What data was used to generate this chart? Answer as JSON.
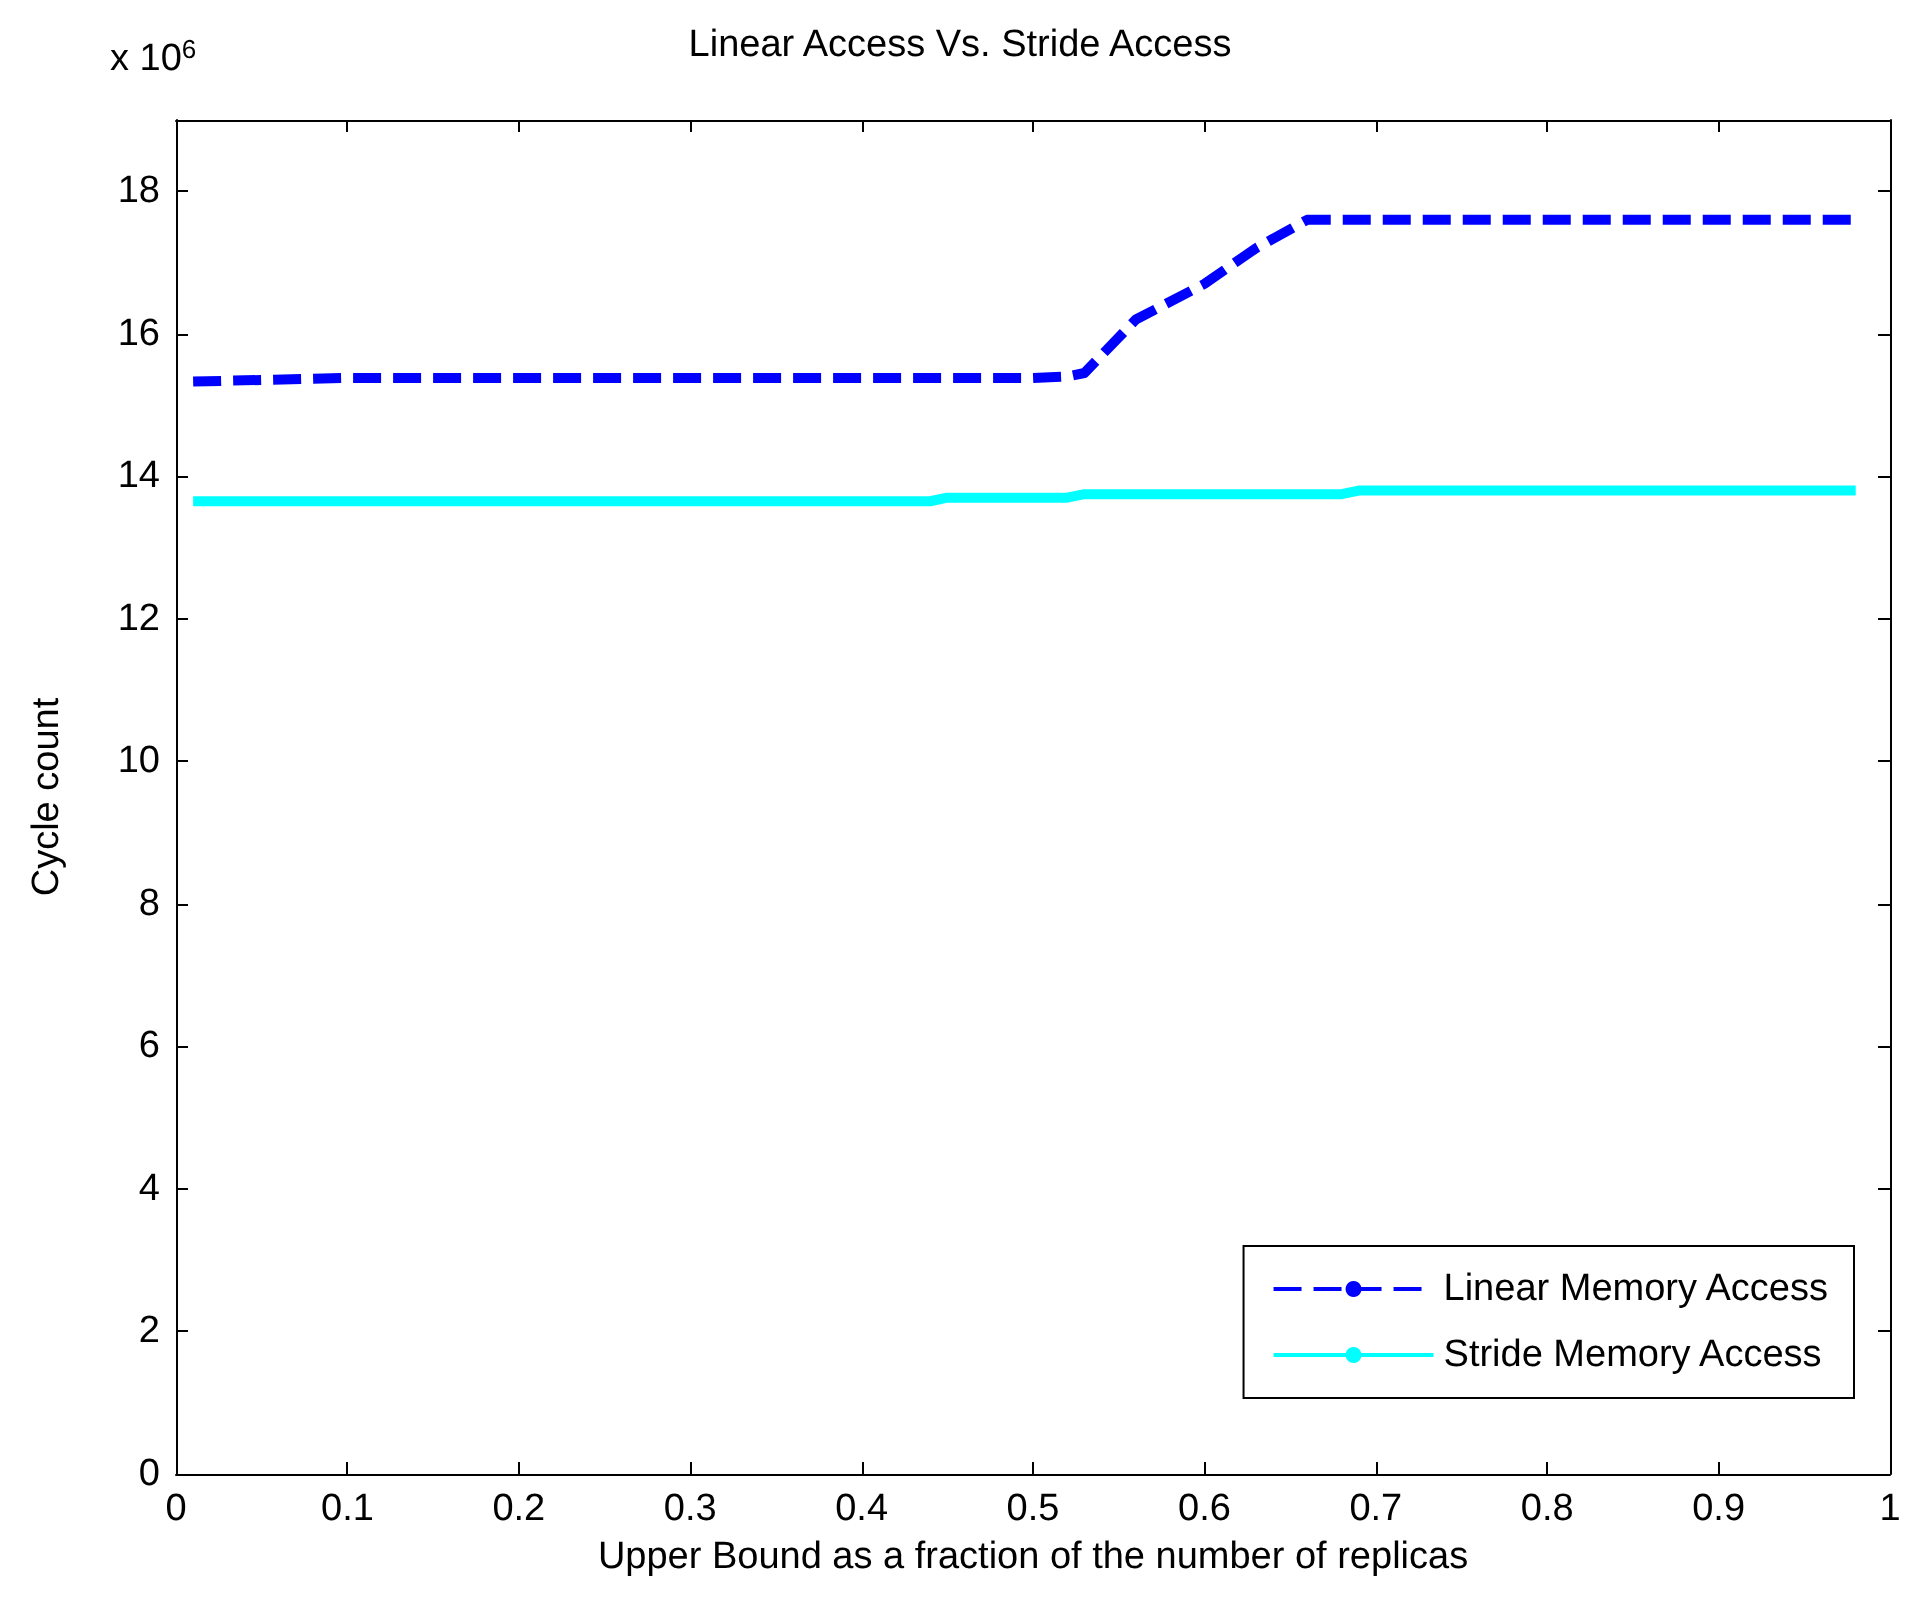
{
  "chart_data": {
    "type": "line",
    "title": "Linear Access Vs. Stride Access",
    "xlabel": "Upper Bound as a fraction of the number of replicas",
    "ylabel": "Cycle count",
    "annotations": [
      "x 10$^{6}$"
    ],
    "xlim": [
      0,
      1
    ],
    "xticks": [
      0,
      0.1,
      0.2,
      0.3,
      0.4,
      0.5,
      0.6,
      0.7,
      0.8,
      0.9,
      1
    ],
    "ylim": [
      0,
      19
    ],
    "yticks": [
      0,
      2,
      4,
      6,
      8,
      10,
      12,
      14,
      16,
      18
    ],
    "grid": false,
    "legend": "bottom right",
    "marker": "none",
    "series": [
      {
        "name": "Linear Memory Access",
        "color": "#0000ff",
        "line_style": "dashed",
        "x": [
          0.01,
          0.1,
          0.2,
          0.3,
          0.4,
          0.5,
          0.52,
          0.53,
          0.56,
          0.6,
          0.63,
          0.66,
          0.7,
          0.8,
          0.9,
          0.98
        ],
        "values": [
          15.33,
          15.38,
          15.38,
          15.38,
          15.38,
          15.38,
          15.4,
          15.45,
          16.2,
          16.7,
          17.2,
          17.6,
          17.6,
          17.6,
          17.6,
          17.6
        ]
      },
      {
        "name": "Stride Memory Access",
        "color": "#00ffff",
        "line_style": "solid",
        "x": [
          0.01,
          0.44,
          0.45,
          0.52,
          0.53,
          0.68,
          0.69,
          0.98
        ],
        "values": [
          13.65,
          13.65,
          13.7,
          13.7,
          13.75,
          13.75,
          13.8,
          13.8
        ]
      }
    ]
  }
}
